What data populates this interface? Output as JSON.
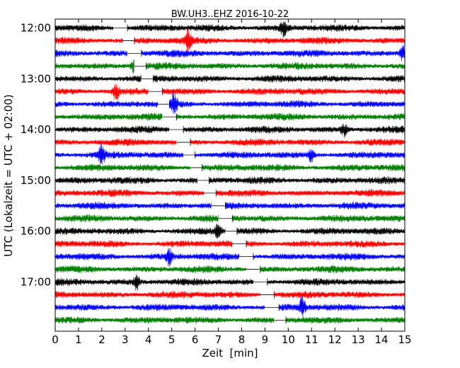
{
  "chart_data": {
    "type": "line",
    "title": "BW.UH3..EHZ 2016-10-22",
    "xlabel": "Zeit  [min]",
    "ylabel": "UTC (Lokalzeit = UTC + 02:00)",
    "xlim": [
      0,
      15
    ],
    "xticks": [
      "0",
      "1",
      "2",
      "3",
      "4",
      "5",
      "6",
      "7",
      "8",
      "9",
      "10",
      "11",
      "12",
      "13",
      "14",
      "15"
    ],
    "yticks": [
      "12:00",
      "13:00",
      "14:00",
      "15:00",
      "16:00",
      "17:00"
    ],
    "row_interval_min": 15,
    "row_start": "12:00",
    "row_count": 24,
    "series_colors": [
      "#000000",
      "#ff0000",
      "#0000ff",
      "#008000"
    ],
    "grid": false,
    "gaps": [
      {
        "row": 0,
        "t0": 2.5,
        "t1": 3.1
      },
      {
        "row": 1,
        "t0": 2.9,
        "t1": 3.4
      },
      {
        "row": 2,
        "t0": 3.1,
        "t1": 3.7
      },
      {
        "row": 3,
        "t0": 3.4,
        "t1": 3.9
      },
      {
        "row": 4,
        "t0": 3.7,
        "t1": 4.2
      },
      {
        "row": 5,
        "t0": 4.0,
        "t1": 4.6
      },
      {
        "row": 6,
        "t0": 4.4,
        "t1": 4.9
      },
      {
        "row": 7,
        "t0": 4.6,
        "t1": 5.2
      },
      {
        "row": 8,
        "t0": 4.9,
        "t1": 5.5
      },
      {
        "row": 9,
        "t0": 5.2,
        "t1": 5.8
      },
      {
        "row": 10,
        "t0": 5.5,
        "t1": 6.0
      },
      {
        "row": 11,
        "t0": 5.8,
        "t1": 6.3
      },
      {
        "row": 12,
        "t0": 6.1,
        "t1": 6.6
      },
      {
        "row": 13,
        "t0": 6.4,
        "t1": 6.9
      },
      {
        "row": 14,
        "t0": 6.7,
        "t1": 7.3
      },
      {
        "row": 15,
        "t0": 7.0,
        "t1": 7.6
      },
      {
        "row": 16,
        "t0": 7.3,
        "t1": 7.8
      },
      {
        "row": 17,
        "t0": 7.6,
        "t1": 8.2
      },
      {
        "row": 18,
        "t0": 7.9,
        "t1": 8.5
      },
      {
        "row": 19,
        "t0": 8.2,
        "t1": 8.8
      },
      {
        "row": 20,
        "t0": 8.5,
        "t1": 9.1
      },
      {
        "row": 21,
        "t0": 8.8,
        "t1": 9.4
      },
      {
        "row": 22,
        "t0": 9.0,
        "t1": 9.6
      },
      {
        "row": 23,
        "t0": 9.4,
        "t1": 9.9
      }
    ],
    "events": [
      {
        "row": 0,
        "t": 9.8,
        "amp": 1.4
      },
      {
        "row": 1,
        "t": 5.7,
        "amp": 2.0
      },
      {
        "row": 2,
        "t": 14.9,
        "amp": 1.3
      },
      {
        "row": 3,
        "t": 3.4,
        "amp": 1.2
      },
      {
        "row": 5,
        "t": 2.6,
        "amp": 1.5
      },
      {
        "row": 6,
        "t": 5.1,
        "amp": 1.7
      },
      {
        "row": 8,
        "t": 12.4,
        "amp": 1.1
      },
      {
        "row": 10,
        "t": 2.0,
        "amp": 1.8
      },
      {
        "row": 10,
        "t": 11.0,
        "amp": 1.2
      },
      {
        "row": 16,
        "t": 7.0,
        "amp": 1.3
      },
      {
        "row": 18,
        "t": 4.9,
        "amp": 1.4
      },
      {
        "row": 20,
        "t": 3.5,
        "amp": 1.3
      },
      {
        "row": 22,
        "t": 10.6,
        "amp": 1.6
      }
    ]
  }
}
